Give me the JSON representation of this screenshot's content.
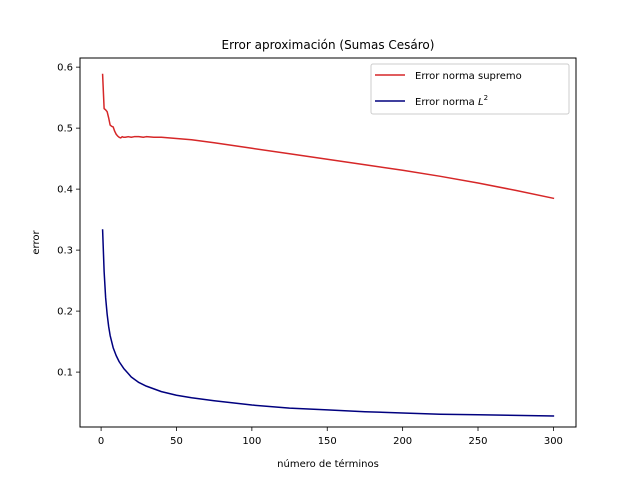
{
  "chart_data": {
    "type": "line",
    "title": "Error aproximación (Sumas Cesáro)",
    "xlabel": "número de términos",
    "ylabel": "error",
    "xlim": [
      -14,
      315
    ],
    "ylim": [
      0.01,
      0.615
    ],
    "xticks": [
      0,
      50,
      100,
      150,
      200,
      250,
      300
    ],
    "yticks": [
      0.1,
      0.2,
      0.3,
      0.4,
      0.5,
      0.6
    ],
    "grid": false,
    "legend_position": "upper right",
    "series": [
      {
        "name": "Error norma supremo",
        "color": "#d62728",
        "x": [
          1,
          2,
          3,
          4,
          5,
          6,
          7,
          8,
          9,
          10,
          11,
          12,
          13,
          14,
          15,
          16,
          18,
          20,
          22,
          25,
          28,
          30,
          35,
          40,
          50,
          60,
          75,
          100,
          125,
          150,
          175,
          200,
          225,
          250,
          275,
          300
        ],
        "y": [
          0.588,
          0.532,
          0.53,
          0.527,
          0.517,
          0.505,
          0.503,
          0.502,
          0.495,
          0.49,
          0.487,
          0.485,
          0.484,
          0.486,
          0.485,
          0.485,
          0.486,
          0.485,
          0.486,
          0.486,
          0.485,
          0.486,
          0.485,
          0.485,
          0.483,
          0.481,
          0.476,
          0.467,
          0.458,
          0.449,
          0.44,
          0.431,
          0.421,
          0.41,
          0.398,
          0.385
        ]
      },
      {
        "name": "Error norma L^2",
        "name_base": "Error norma ",
        "name_var": "L",
        "name_sup": "2",
        "color": "#00007f",
        "x": [
          1,
          2,
          3,
          4,
          5,
          6,
          8,
          10,
          12,
          15,
          20,
          25,
          30,
          40,
          50,
          60,
          75,
          100,
          125,
          150,
          175,
          200,
          225,
          250,
          275,
          300
        ],
        "y": [
          0.333,
          0.265,
          0.222,
          0.195,
          0.175,
          0.16,
          0.14,
          0.127,
          0.117,
          0.106,
          0.092,
          0.083,
          0.077,
          0.068,
          0.062,
          0.058,
          0.053,
          0.046,
          0.041,
          0.038,
          0.035,
          0.033,
          0.031,
          0.03,
          0.029,
          0.028
        ]
      }
    ]
  }
}
